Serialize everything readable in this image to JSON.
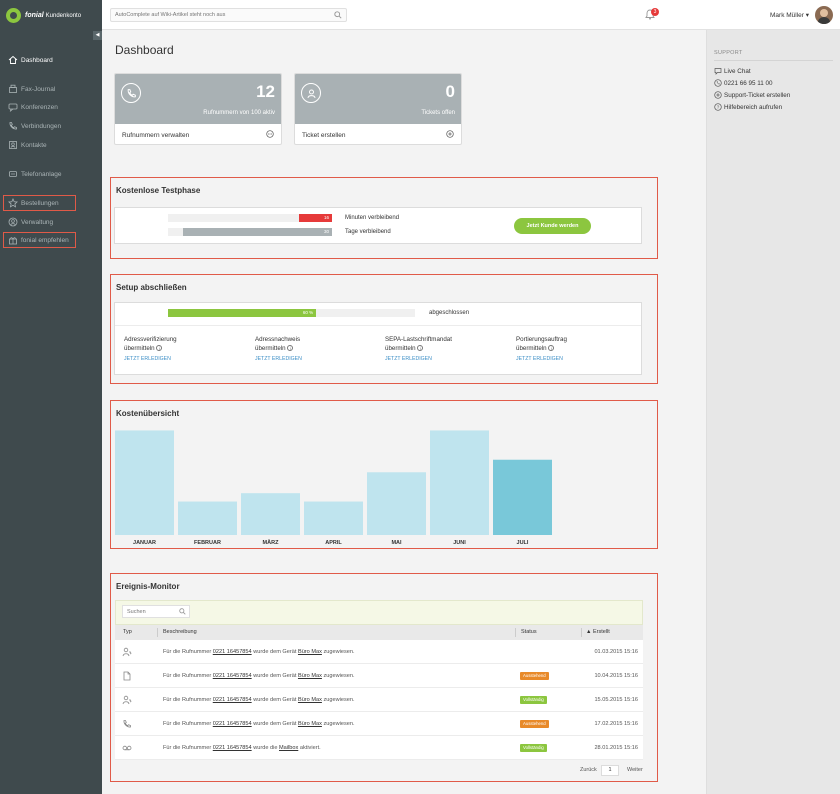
{
  "header": {
    "logo_brand": "fonial",
    "logo_sub": "Kundenkonto",
    "search_placeholder": "AutoComplete auf Wiki-Artikel steht noch aus",
    "notification_count": "3",
    "user_name": "Mark Müller"
  },
  "sidebar": {
    "items": [
      {
        "label": "Dashboard",
        "icon": "home-icon"
      },
      {
        "label": "Fax-Journal",
        "icon": "fax-icon"
      },
      {
        "label": "Konferenzen",
        "icon": "conference-icon"
      },
      {
        "label": "Verbindungen",
        "icon": "phone-icon"
      },
      {
        "label": "Kontakte",
        "icon": "contacts-icon"
      },
      {
        "label": "Telefonanlage",
        "icon": "pbx-icon"
      },
      {
        "label": "Bestellungen",
        "icon": "star-icon"
      },
      {
        "label": "Verwaltung",
        "icon": "user-icon"
      },
      {
        "label": "fonial empfehlen",
        "icon": "recommend-icon"
      }
    ]
  },
  "main": {
    "title": "Dashboard",
    "kpis": [
      {
        "value": "12",
        "caption": "Rufnummern von 100 aktiv",
        "action": "Rufnummern verwalten",
        "icon": "phone-icon"
      },
      {
        "value": "0",
        "caption": "Tickets offen",
        "action": "Ticket erstellen",
        "icon": "support-icon"
      }
    ],
    "trial": {
      "title": "Kostenlose Testphase",
      "minutes_value": "16",
      "minutes_fraction": 0.2,
      "minutes_label": "Minuten verbleibend",
      "days_value": "30",
      "days_fraction": 0.91,
      "days_label": "Tage verbleibend",
      "cta": "Jetzt Kunde werden"
    },
    "setup": {
      "title": "Setup abschließen",
      "progress_text": "60 %",
      "progress_fraction": 0.6,
      "progress_label": "abgeschlossen",
      "tasks": [
        {
          "line1": "Adressverifizierung",
          "line2": "übermitteln",
          "link": "JETZT ERLEDIGEN"
        },
        {
          "line1": "Adressnachweis",
          "line2": "übermitteln",
          "link": "JETZT ERLEDIGEN"
        },
        {
          "line1": "SEPA-Lastschriftmandat",
          "line2": "übermitteln",
          "link": "JETZT ERLEDIGEN"
        },
        {
          "line1": "Portierungsauftrag",
          "line2": "übermitteln",
          "link": "JETZT ERLEDIGEN"
        }
      ]
    },
    "costs": {
      "title": "Kostenübersicht"
    },
    "monitor": {
      "title": "Ereignis-Monitor",
      "search_placeholder": "Suchen",
      "columns": {
        "type": "Typ",
        "description": "Beschreibung",
        "status": "Status",
        "created": "Erstellt"
      },
      "rows": [
        {
          "icon": "user-phone-icon",
          "prefix": "Für die Rufnummer ",
          "number": "0221 16457854",
          "middle": " wurde dem Gerät ",
          "target": "Büro Max",
          "suffix": " zugewiesen.",
          "status": "",
          "date": "01.03.2015 15:16"
        },
        {
          "icon": "document-icon",
          "prefix": "Für die Rufnummer ",
          "number": "0221 16457854",
          "middle": " wurde dem Gerät ",
          "target": "Büro Max",
          "suffix": " zugewiesen.",
          "status": "Ausstehend",
          "date": "10.04.2015 15:16"
        },
        {
          "icon": "user-phone-icon",
          "prefix": "Für die Rufnummer ",
          "number": "0221 16457854",
          "middle": " wurde dem Gerät ",
          "target": "Büro Max",
          "suffix": " zugewiesen.",
          "status": "Vollständig",
          "date": "15.05.2015 15:16"
        },
        {
          "icon": "phone-icon",
          "prefix": "Für die Rufnummer ",
          "number": "0221 16457854",
          "middle": " wurde dem Gerät ",
          "target": "Büro Max",
          "suffix": " zugewiesen.",
          "status": "Ausstehend",
          "date": "17.02.2015 15:16"
        },
        {
          "icon": "voicemail-icon",
          "prefix": "Für die Rufnummer ",
          "number": "0221 16457854",
          "middle": " wurde die ",
          "target": "Mailbox",
          "suffix": " aktiviert.",
          "status": "Vollständig",
          "date": "28.01.2015 15:16"
        }
      ],
      "pager": {
        "prev": "Zurück",
        "page": "1",
        "next": "Weiter"
      }
    }
  },
  "support": {
    "title": "SUPPORT",
    "links": [
      {
        "label": "Live Chat",
        "icon": "chat-icon"
      },
      {
        "label": "0221 66 95 11 00",
        "icon": "phone-icon"
      },
      {
        "label": "Support-Ticket erstellen",
        "icon": "plus-icon"
      },
      {
        "label": "Hilfebereich aufrufen",
        "icon": "help-icon"
      }
    ]
  },
  "colors": {
    "accent_green": "#8cc63f",
    "sidebar_bg": "#3f4a4d",
    "danger_red": "#e63a3a",
    "status_pending": "#e88a2a",
    "status_complete": "#8cc63f",
    "chart_bar": "#bfe4ee",
    "chart_bar_current": "#79c8d9"
  },
  "chart_data": {
    "type": "bar",
    "title": "Kostenübersicht",
    "categories": [
      "JANUAR",
      "FEBRUAR",
      "MÄRZ",
      "APRIL",
      "MAI",
      "JUNI",
      "JULI"
    ],
    "values": [
      100,
      32,
      40,
      32,
      60,
      100,
      72
    ],
    "highlighted_category": "JULI",
    "ylim": [
      0,
      110
    ],
    "grid": false,
    "legend": "none"
  }
}
